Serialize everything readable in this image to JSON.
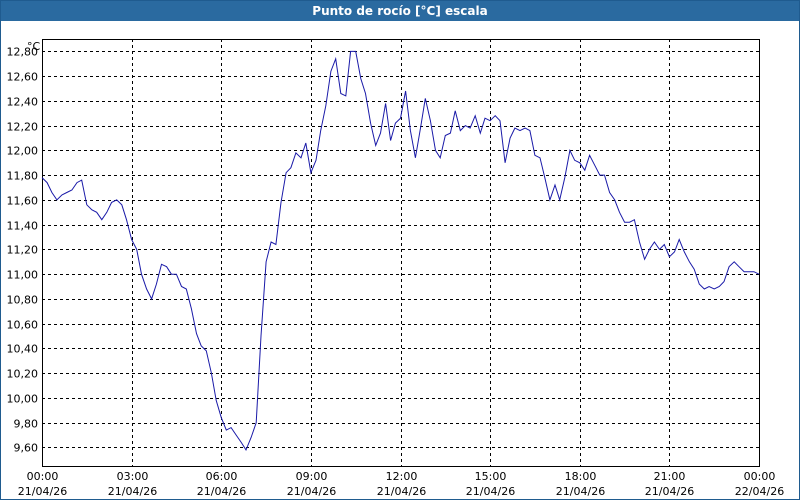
{
  "window": {
    "title": "Punto de rocío [°C] escala"
  },
  "chart_data": {
    "type": "line",
    "title": "Punto de rocío [°C] escala",
    "ylabel": "°C",
    "xlabel": "",
    "ylim": [
      9.45,
      12.9
    ],
    "xlim": [
      0,
      24
    ],
    "grid": true,
    "y_ticks": [
      "12,80",
      "12,60",
      "12,40",
      "12,20",
      "12,00",
      "11,80",
      "11,60",
      "11,40",
      "11,20",
      "11,00",
      "10,80",
      "10,60",
      "10,40",
      "10,20",
      "10,00",
      "9,80",
      "9,60"
    ],
    "y_tick_values": [
      12.8,
      12.6,
      12.4,
      12.2,
      12.0,
      11.8,
      11.6,
      11.4,
      11.2,
      11.0,
      10.8,
      10.6,
      10.4,
      10.2,
      10.0,
      9.8,
      9.6
    ],
    "x_ticks": [
      {
        "time": "00:00",
        "date": "21/04/26"
      },
      {
        "time": "03:00",
        "date": "21/04/26"
      },
      {
        "time": "06:00",
        "date": "21/04/26"
      },
      {
        "time": "09:00",
        "date": "21/04/26"
      },
      {
        "time": "12:00",
        "date": "21/04/26"
      },
      {
        "time": "15:00",
        "date": "21/04/26"
      },
      {
        "time": "18:00",
        "date": "21/04/26"
      },
      {
        "time": "21:00",
        "date": "21/04/26"
      },
      {
        "time": "00:00",
        "date": "22/04/26"
      }
    ],
    "series": [
      {
        "color": "#1a1aa8",
        "points": [
          [
            0.0,
            11.78
          ],
          [
            0.17,
            11.74
          ],
          [
            0.33,
            11.66
          ],
          [
            0.5,
            11.6
          ],
          [
            0.67,
            11.64
          ],
          [
            0.83,
            11.66
          ],
          [
            1.0,
            11.68
          ],
          [
            1.17,
            11.74
          ],
          [
            1.33,
            11.76
          ],
          [
            1.5,
            11.56
          ],
          [
            1.67,
            11.52
          ],
          [
            1.83,
            11.5
          ],
          [
            2.0,
            11.44
          ],
          [
            2.17,
            11.5
          ],
          [
            2.33,
            11.58
          ],
          [
            2.5,
            11.6
          ],
          [
            2.67,
            11.56
          ],
          [
            2.83,
            11.44
          ],
          [
            3.0,
            11.28
          ],
          [
            3.17,
            11.2
          ],
          [
            3.33,
            11.0
          ],
          [
            3.5,
            10.88
          ],
          [
            3.67,
            10.8
          ],
          [
            3.83,
            10.92
          ],
          [
            4.0,
            11.08
          ],
          [
            4.17,
            11.06
          ],
          [
            4.33,
            11.0
          ],
          [
            4.5,
            11.0
          ],
          [
            4.67,
            10.9
          ],
          [
            4.83,
            10.88
          ],
          [
            5.0,
            10.72
          ],
          [
            5.17,
            10.52
          ],
          [
            5.33,
            10.42
          ],
          [
            5.5,
            10.38
          ],
          [
            5.67,
            10.2
          ],
          [
            5.83,
            9.98
          ],
          [
            6.0,
            9.84
          ],
          [
            6.17,
            9.74
          ],
          [
            6.33,
            9.76
          ],
          [
            6.5,
            9.7
          ],
          [
            6.67,
            9.64
          ],
          [
            6.83,
            9.58
          ],
          [
            7.0,
            9.68
          ],
          [
            7.17,
            9.8
          ],
          [
            7.33,
            10.5
          ],
          [
            7.5,
            11.1
          ],
          [
            7.67,
            11.26
          ],
          [
            7.83,
            11.24
          ],
          [
            8.0,
            11.58
          ],
          [
            8.17,
            11.82
          ],
          [
            8.33,
            11.86
          ],
          [
            8.5,
            11.98
          ],
          [
            8.67,
            11.94
          ],
          [
            8.83,
            12.06
          ],
          [
            9.0,
            11.82
          ],
          [
            9.17,
            11.92
          ],
          [
            9.33,
            12.16
          ],
          [
            9.5,
            12.36
          ],
          [
            9.67,
            12.64
          ],
          [
            9.83,
            12.74
          ],
          [
            10.0,
            12.46
          ],
          [
            10.17,
            12.44
          ],
          [
            10.33,
            12.8
          ],
          [
            10.5,
            12.8
          ],
          [
            10.67,
            12.58
          ],
          [
            10.83,
            12.46
          ],
          [
            11.0,
            12.22
          ],
          [
            11.17,
            12.04
          ],
          [
            11.33,
            12.14
          ],
          [
            11.5,
            12.38
          ],
          [
            11.67,
            12.08
          ],
          [
            11.83,
            12.22
          ],
          [
            12.0,
            12.26
          ],
          [
            12.17,
            12.48
          ],
          [
            12.33,
            12.16
          ],
          [
            12.5,
            11.94
          ],
          [
            12.67,
            12.18
          ],
          [
            12.83,
            12.42
          ],
          [
            13.0,
            12.24
          ],
          [
            13.17,
            12.0
          ],
          [
            13.33,
            11.94
          ],
          [
            13.5,
            12.12
          ],
          [
            13.67,
            12.14
          ],
          [
            13.83,
            12.32
          ],
          [
            14.0,
            12.16
          ],
          [
            14.17,
            12.2
          ],
          [
            14.33,
            12.18
          ],
          [
            14.5,
            12.28
          ],
          [
            14.67,
            12.14
          ],
          [
            14.83,
            12.26
          ],
          [
            15.0,
            12.24
          ],
          [
            15.17,
            12.28
          ],
          [
            15.33,
            12.24
          ],
          [
            15.5,
            11.9
          ],
          [
            15.67,
            12.1
          ],
          [
            15.83,
            12.18
          ],
          [
            16.0,
            12.16
          ],
          [
            16.17,
            12.18
          ],
          [
            16.33,
            12.16
          ],
          [
            16.5,
            11.96
          ],
          [
            16.67,
            11.94
          ],
          [
            16.83,
            11.78
          ],
          [
            17.0,
            11.6
          ],
          [
            17.17,
            11.72
          ],
          [
            17.33,
            11.6
          ],
          [
            17.5,
            11.78
          ],
          [
            17.67,
            12.0
          ],
          [
            17.83,
            11.92
          ],
          [
            18.0,
            11.9
          ],
          [
            18.17,
            11.84
          ],
          [
            18.33,
            11.96
          ],
          [
            18.5,
            11.88
          ],
          [
            18.67,
            11.8
          ],
          [
            18.83,
            11.8
          ],
          [
            19.0,
            11.66
          ],
          [
            19.17,
            11.6
          ],
          [
            19.33,
            11.5
          ],
          [
            19.5,
            11.42
          ],
          [
            19.67,
            11.42
          ],
          [
            19.83,
            11.44
          ],
          [
            20.0,
            11.26
          ],
          [
            20.17,
            11.12
          ],
          [
            20.33,
            11.2
          ],
          [
            20.5,
            11.26
          ],
          [
            20.67,
            11.2
          ],
          [
            20.83,
            11.24
          ],
          [
            21.0,
            11.14
          ],
          [
            21.17,
            11.18
          ],
          [
            21.33,
            11.28
          ],
          [
            21.5,
            11.18
          ],
          [
            21.67,
            11.1
          ],
          [
            21.83,
            11.04
          ],
          [
            22.0,
            10.92
          ],
          [
            22.17,
            10.88
          ],
          [
            22.33,
            10.9
          ],
          [
            22.5,
            10.88
          ],
          [
            22.67,
            10.9
          ],
          [
            22.83,
            10.94
          ],
          [
            23.0,
            11.06
          ],
          [
            23.17,
            11.1
          ],
          [
            23.33,
            11.06
          ],
          [
            23.5,
            11.02
          ],
          [
            23.67,
            11.02
          ],
          [
            23.83,
            11.02
          ],
          [
            24.0,
            11.0
          ]
        ]
      }
    ]
  }
}
